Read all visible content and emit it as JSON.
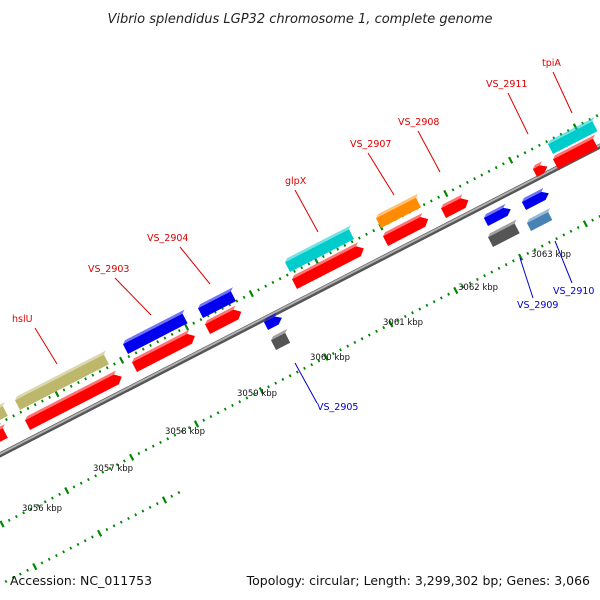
{
  "title": "Vibrio splendidus LGP32 chromosome 1, complete genome",
  "footer": {
    "accession": "Accession: NC_011753",
    "summary": "Topology: circular; Length: 3,299,302 bp; Genes: 3,066"
  },
  "colors": {
    "label_top": "#dd0000",
    "label_bottom": "#0000cc",
    "backbone": "#888888",
    "ticks": "#008800",
    "cds": "#ff0000"
  },
  "scale": {
    "ticks": [
      "3056 kbp",
      "3057 kbp",
      "3058 kbp",
      "3059 kbp",
      "3060 kbp",
      "3061 kbp",
      "3062 kbp",
      "3063 kbp"
    ]
  },
  "genes_top": [
    {
      "label": "hslU",
      "color": "#bdb76b"
    },
    {
      "label": "VS_2903",
      "color": "#0000ee"
    },
    {
      "label": "VS_2904",
      "color": "#0000ee"
    },
    {
      "label": "glpX",
      "color": "#00cccc"
    },
    {
      "label": "VS_2907",
      "color": "#ff8c00"
    },
    {
      "label": "VS_2908",
      "color": "#ff0000"
    },
    {
      "label": "VS_2911",
      "color": "#ff0000"
    },
    {
      "label": "tpiA",
      "color": "#00cccc"
    }
  ],
  "genes_bottom": [
    {
      "label": "VS_2905",
      "color": "#0000ee"
    },
    {
      "label": "VS_2909",
      "color": "#0000ee"
    },
    {
      "label": "VS_2910",
      "color": "#0000ee"
    }
  ]
}
